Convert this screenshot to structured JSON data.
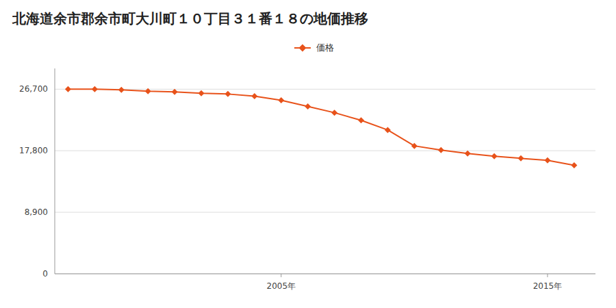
{
  "chart_data": {
    "type": "line",
    "title": "北海道余市郡余市町大川町１０丁目３１番１８の地価推移",
    "x": [
      1997,
      1998,
      1999,
      2000,
      2001,
      2002,
      2003,
      2004,
      2005,
      2006,
      2007,
      2008,
      2009,
      2010,
      2011,
      2012,
      2013,
      2014,
      2015,
      2016
    ],
    "series": [
      {
        "name": "価格",
        "color": "#e8521a",
        "marker": "diamond",
        "line_style": "solid",
        "values": [
          26700,
          26700,
          26600,
          26400,
          26300,
          26100,
          26000,
          25700,
          25100,
          24200,
          23300,
          22200,
          20800,
          18500,
          17900,
          17400,
          17000,
          16700,
          16400,
          15700
        ]
      }
    ],
    "xlim": [
      1996.5,
      2016.8
    ],
    "xticks": [
      {
        "value": 2005,
        "label": "2005年"
      },
      {
        "value": 2015,
        "label": "2015年"
      }
    ],
    "ylim": [
      0,
      29700
    ],
    "yticks": [
      0,
      {
        "value": 8900,
        "label": "8,900"
      },
      {
        "value": 17800,
        "label": "17,800"
      },
      {
        "value": 26700,
        "label": "26,700"
      }
    ],
    "grid": true,
    "legend": "top"
  }
}
